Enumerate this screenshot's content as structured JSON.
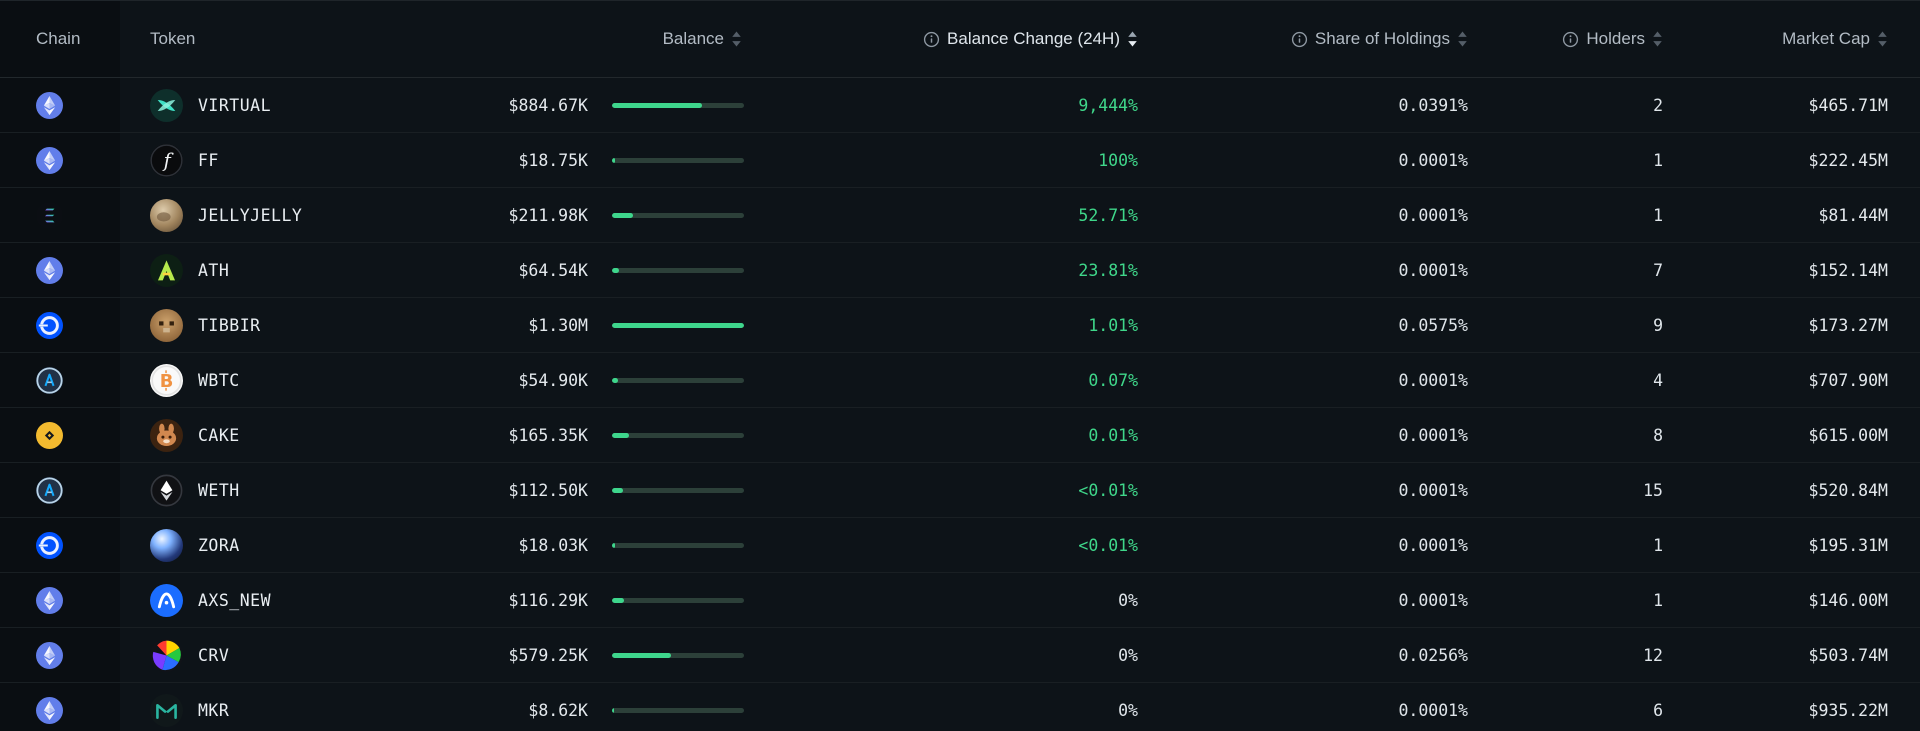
{
  "colors": {
    "background": "#0d1318",
    "positive_text": "#3fd78a",
    "bar_fill": "#3ed68c",
    "bar_track": "#2c4039",
    "header_text": "#b3bcc5",
    "value_text": "#e4e9ed"
  },
  "table": {
    "columns": [
      {
        "id": "chain",
        "label": "Chain",
        "align": "left",
        "info": false,
        "sortable": false,
        "active": false
      },
      {
        "id": "token",
        "label": "Token",
        "align": "left",
        "info": false,
        "sortable": false,
        "active": false
      },
      {
        "id": "balance",
        "label": "Balance",
        "align": "right",
        "info": false,
        "sortable": true,
        "active": false
      },
      {
        "id": "change",
        "label": "Balance Change (24H)",
        "align": "right",
        "info": true,
        "sortable": true,
        "active": true
      },
      {
        "id": "share",
        "label": "Share of Holdings",
        "align": "right",
        "info": true,
        "sortable": true,
        "active": false
      },
      {
        "id": "holders",
        "label": "Holders",
        "align": "right",
        "info": true,
        "sortable": true,
        "active": false
      },
      {
        "id": "market_cap",
        "label": "Market Cap",
        "align": "right",
        "info": false,
        "sortable": true,
        "active": false
      }
    ],
    "sorted_by": "change",
    "sort_direction": "desc",
    "rows": [
      {
        "chain": "ethereum",
        "chain_icon": "ethereum-chain-icon",
        "token": "VIRTUAL",
        "token_icon": "virtual-token-icon",
        "balance": "$884.67K",
        "balance_bar_pct": 68,
        "change": "9,444%",
        "change_positive": true,
        "share": "0.0391%",
        "holders": "2",
        "market_cap": "$465.71M"
      },
      {
        "chain": "ethereum",
        "chain_icon": "ethereum-chain-icon",
        "token": "FF",
        "token_icon": "ff-token-icon",
        "balance": "$18.75K",
        "balance_bar_pct": 2,
        "change": "100%",
        "change_positive": true,
        "share": "0.0001%",
        "holders": "1",
        "market_cap": "$222.45M"
      },
      {
        "chain": "solana",
        "chain_icon": "solana-chain-icon",
        "token": "JELLYJELLY",
        "token_icon": "jellyjelly-token-icon",
        "balance": "$211.98K",
        "balance_bar_pct": 16,
        "change": "52.71%",
        "change_positive": true,
        "share": "0.0001%",
        "holders": "1",
        "market_cap": "$81.44M"
      },
      {
        "chain": "ethereum",
        "chain_icon": "ethereum-chain-icon",
        "token": "ATH",
        "token_icon": "ath-token-icon",
        "balance": "$64.54K",
        "balance_bar_pct": 5,
        "change": "23.81%",
        "change_positive": true,
        "share": "0.0001%",
        "holders": "7",
        "market_cap": "$152.14M"
      },
      {
        "chain": "base",
        "chain_icon": "base-chain-icon",
        "token": "TIBBIR",
        "token_icon": "tibbir-token-icon",
        "balance": "$1.30M",
        "balance_bar_pct": 100,
        "change": "1.01%",
        "change_positive": true,
        "share": "0.0575%",
        "holders": "9",
        "market_cap": "$173.27M"
      },
      {
        "chain": "arbitrum",
        "chain_icon": "arbitrum-chain-icon",
        "token": "WBTC",
        "token_icon": "wbtc-token-icon",
        "balance": "$54.90K",
        "balance_bar_pct": 4.2,
        "change": "0.07%",
        "change_positive": true,
        "share": "0.0001%",
        "holders": "4",
        "market_cap": "$707.90M"
      },
      {
        "chain": "bnb",
        "chain_icon": "bnb-chain-icon",
        "token": "CAKE",
        "token_icon": "cake-token-icon",
        "balance": "$165.35K",
        "balance_bar_pct": 12.7,
        "change": "0.01%",
        "change_positive": true,
        "share": "0.0001%",
        "holders": "8",
        "market_cap": "$615.00M"
      },
      {
        "chain": "arbitrum",
        "chain_icon": "arbitrum-chain-icon",
        "token": "WETH",
        "token_icon": "weth-token-icon",
        "balance": "$112.50K",
        "balance_bar_pct": 8.7,
        "change": "<0.01%",
        "change_positive": true,
        "share": "0.0001%",
        "holders": "15",
        "market_cap": "$520.84M"
      },
      {
        "chain": "base",
        "chain_icon": "base-chain-icon",
        "token": "ZORA",
        "token_icon": "zora-token-icon",
        "balance": "$18.03K",
        "balance_bar_pct": 2,
        "change": "<0.01%",
        "change_positive": true,
        "share": "0.0001%",
        "holders": "1",
        "market_cap": "$195.31M"
      },
      {
        "chain": "ethereum",
        "chain_icon": "ethereum-chain-icon",
        "token": "AXS_NEW",
        "token_icon": "axs-token-icon",
        "balance": "$116.29K",
        "balance_bar_pct": 9,
        "change": "0%",
        "change_positive": false,
        "share": "0.0001%",
        "holders": "1",
        "market_cap": "$146.00M"
      },
      {
        "chain": "ethereum",
        "chain_icon": "ethereum-chain-icon",
        "token": "CRV",
        "token_icon": "crv-token-icon",
        "balance": "$579.25K",
        "balance_bar_pct": 44.5,
        "change": "0%",
        "change_positive": false,
        "share": "0.0256%",
        "holders": "12",
        "market_cap": "$503.74M"
      },
      {
        "chain": "ethereum",
        "chain_icon": "ethereum-chain-icon",
        "token": "MKR",
        "token_icon": "mkr-token-icon",
        "balance": "$8.62K",
        "balance_bar_pct": 1.2,
        "change": "0%",
        "change_positive": false,
        "share": "0.0001%",
        "holders": "6",
        "market_cap": "$935.22M"
      }
    ]
  }
}
